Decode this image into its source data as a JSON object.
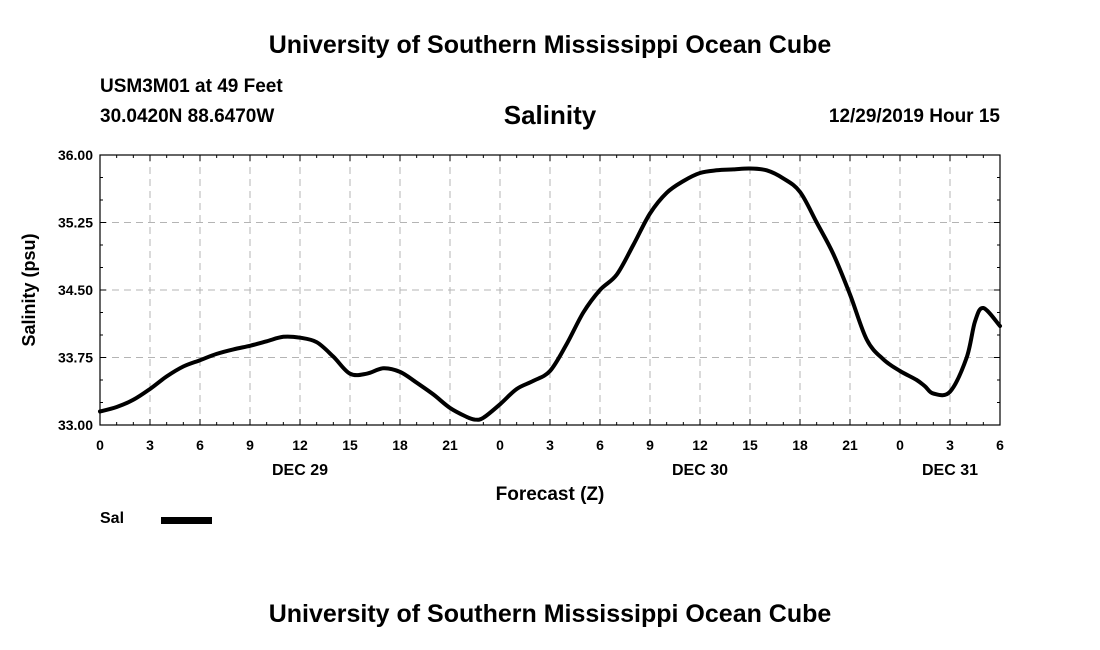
{
  "header": {
    "title": "University of Southern Mississippi Ocean Cube",
    "station": "USM3M01 at 49 Feet",
    "coordinates": "30.0420N 88.6470W",
    "variable": "Salinity",
    "datetime": "12/29/2019 Hour 15"
  },
  "footer": {
    "title": "University of Southern Mississippi Ocean Cube"
  },
  "legend": {
    "label": "Sal"
  },
  "chart_data": {
    "type": "line",
    "title": "Salinity",
    "xlabel": "Forecast (Z)",
    "ylabel": "Salinity (psu)",
    "xlim": [
      0,
      54
    ],
    "ylim": [
      33.0,
      36.0
    ],
    "grid": true,
    "yticks": [
      "33.00",
      "33.75",
      "34.50",
      "35.25",
      "36.00"
    ],
    "xticks": [
      {
        "hour": 0,
        "label": "0"
      },
      {
        "hour": 3,
        "label": "3"
      },
      {
        "hour": 6,
        "label": "6"
      },
      {
        "hour": 9,
        "label": "9"
      },
      {
        "hour": 12,
        "label": "12"
      },
      {
        "hour": 15,
        "label": "15"
      },
      {
        "hour": 18,
        "label": "18"
      },
      {
        "hour": 21,
        "label": "21"
      },
      {
        "hour": 24,
        "label": "0"
      },
      {
        "hour": 27,
        "label": "3"
      },
      {
        "hour": 30,
        "label": "6"
      },
      {
        "hour": 33,
        "label": "9"
      },
      {
        "hour": 36,
        "label": "12"
      },
      {
        "hour": 39,
        "label": "15"
      },
      {
        "hour": 42,
        "label": "18"
      },
      {
        "hour": 45,
        "label": "21"
      },
      {
        "hour": 48,
        "label": "0"
      },
      {
        "hour": 51,
        "label": "3"
      },
      {
        "hour": 54,
        "label": "6"
      }
    ],
    "day_labels": [
      {
        "hour": 12,
        "label": "DEC 29"
      },
      {
        "hour": 36,
        "label": "DEC 30"
      },
      {
        "hour": 51,
        "label": "DEC 31"
      }
    ],
    "series": [
      {
        "name": "Sal",
        "color": "#000000",
        "x": [
          0,
          1,
          2,
          3,
          4,
          5,
          6,
          7,
          8,
          9,
          10,
          11,
          12,
          13,
          14,
          15,
          16,
          17,
          18,
          19,
          20,
          21,
          22,
          22.5,
          23,
          24,
          25,
          26,
          27,
          28,
          29,
          30,
          31,
          32,
          33,
          34,
          35,
          36,
          37,
          38,
          39,
          40,
          41,
          42,
          43,
          44,
          45,
          46,
          47,
          48,
          49,
          49.5,
          50,
          51,
          52,
          52.5,
          53,
          54
        ],
        "y": [
          33.15,
          33.2,
          33.28,
          33.4,
          33.54,
          33.65,
          33.72,
          33.79,
          33.84,
          33.88,
          33.93,
          33.98,
          33.97,
          33.92,
          33.76,
          33.57,
          33.57,
          33.63,
          33.59,
          33.47,
          33.34,
          33.19,
          33.09,
          33.06,
          33.08,
          33.23,
          33.4,
          33.49,
          33.6,
          33.9,
          34.25,
          34.5,
          34.67,
          35.0,
          35.35,
          35.58,
          35.71,
          35.8,
          35.83,
          35.84,
          35.85,
          35.83,
          35.74,
          35.59,
          35.25,
          34.9,
          34.45,
          33.95,
          33.73,
          33.6,
          33.5,
          33.43,
          33.35,
          33.37,
          33.75,
          34.15,
          34.3,
          34.1
        ]
      }
    ]
  }
}
